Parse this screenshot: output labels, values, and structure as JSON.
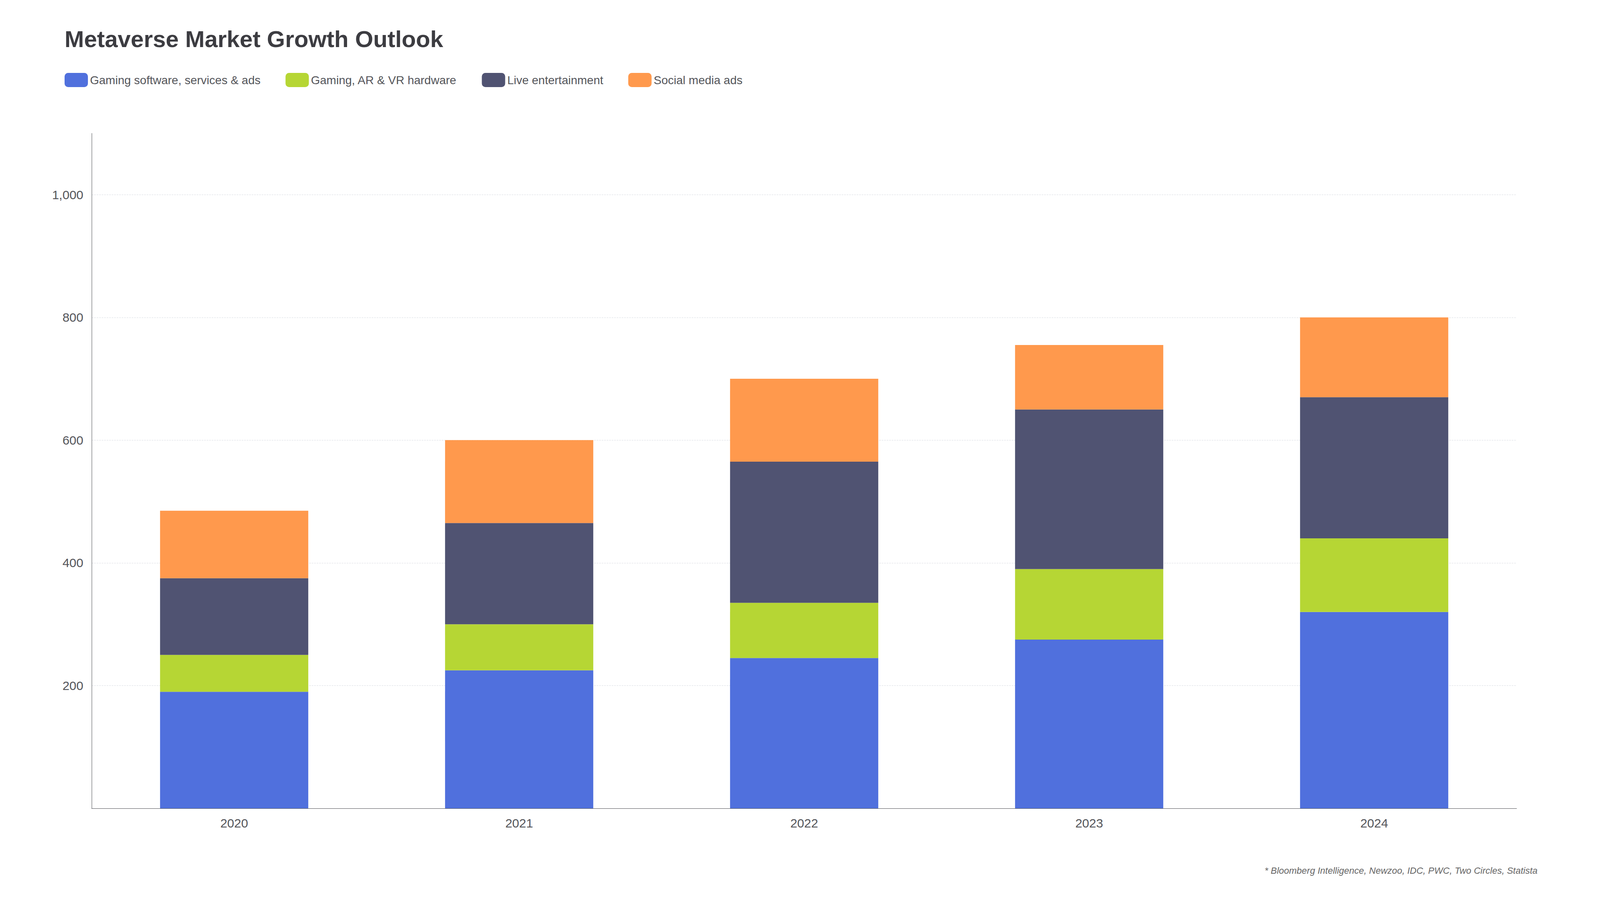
{
  "chart_data": {
    "type": "bar",
    "title": "Metaverse Market Growth Outlook",
    "categories": [
      "2020",
      "2021",
      "2022",
      "2023",
      "2024"
    ],
    "series": [
      {
        "name": "Gaming software, services & ads",
        "values": [
          190,
          225,
          245,
          275,
          320
        ]
      },
      {
        "name": "Gaming, AR & VR hardware",
        "values": [
          60,
          75,
          90,
          115,
          120
        ]
      },
      {
        "name": "Live entertainment",
        "values": [
          125,
          165,
          230,
          260,
          230
        ]
      },
      {
        "name": "Social media ads",
        "values": [
          110,
          135,
          135,
          105,
          130
        ]
      }
    ],
    "stacked": true,
    "ylim": [
      0,
      1100
    ],
    "yticks": [
      200,
      400,
      600,
      800,
      {
        "value": 1000,
        "label": "1,000"
      }
    ],
    "grid": true,
    "legend": "upper left",
    "annotations": [
      "* Bloomberg Intelligence, Newzoo, IDC, PWC, Two Circles, Statista"
    ]
  }
}
